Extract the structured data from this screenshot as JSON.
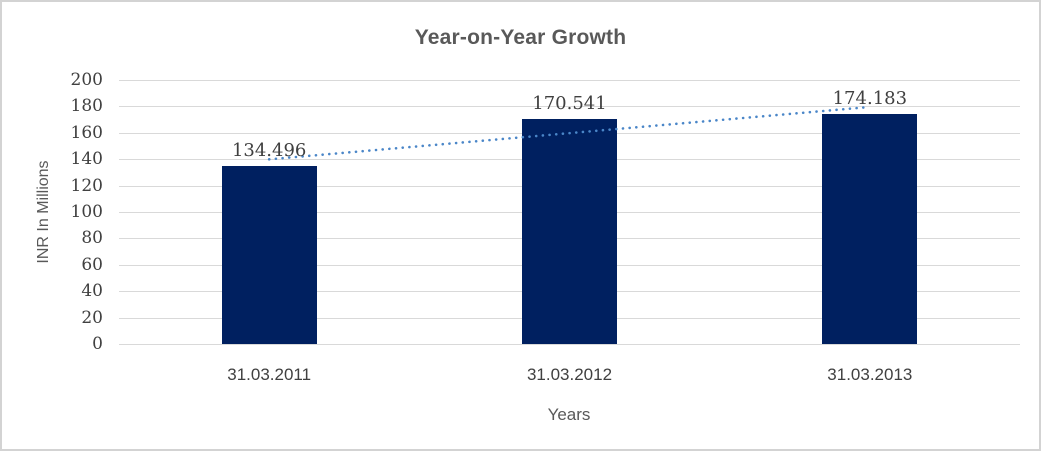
{
  "chart_data": {
    "type": "bar",
    "title": "Year-on-Year Growth",
    "categories": [
      "31.03.2011",
      "31.03.2012",
      "31.03.2013"
    ],
    "values": [
      134.496,
      170.541,
      174.183
    ],
    "data_labels": [
      "134.496",
      "170.541",
      "174.183"
    ],
    "series_name": "INR In Millions",
    "xlabel": "Years",
    "ylabel": "INR In Millions",
    "ylim": [
      0,
      200
    ],
    "ytick_step": 20,
    "grid": true,
    "legend": "none",
    "trendline": {
      "type": "linear",
      "style": "dotted",
      "color": "#4a86c8"
    },
    "colors": {
      "bar": "#002060",
      "grid": "#d9d9d9",
      "title": "#595959",
      "tick_label": "#404040",
      "axis_title": "#595959",
      "frame_border": "#d3d3d3",
      "background": "#ffffff"
    }
  }
}
